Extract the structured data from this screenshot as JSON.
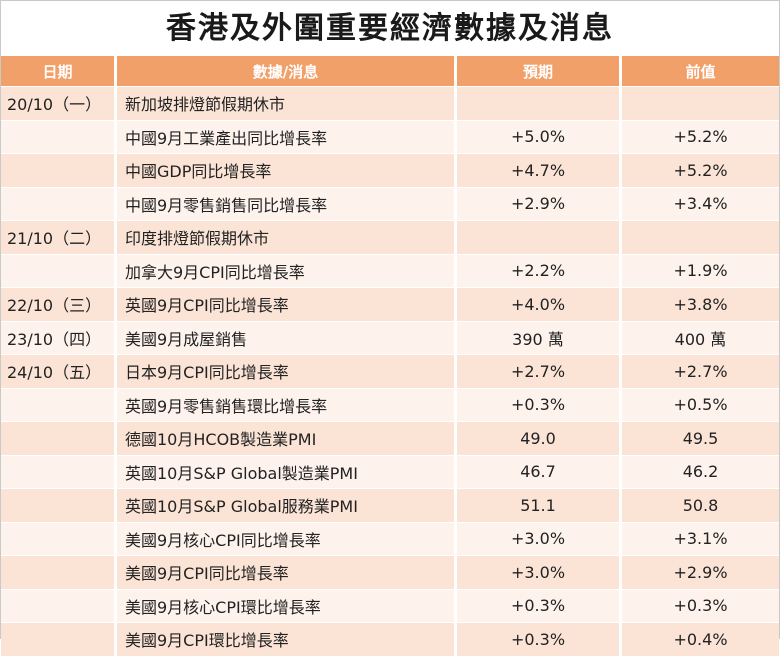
{
  "title": "香港及外圍重要經濟數據及消息",
  "headers": {
    "date": "日期",
    "item": "數據/消息",
    "forecast": "預期",
    "previous": "前值"
  },
  "rows": [
    {
      "date": "20/10（一）",
      "item": "新加坡排燈節假期休市",
      "forecast": "",
      "previous": ""
    },
    {
      "date": "",
      "item": "中國9月工業產出同比增長率",
      "forecast": "+5.0%",
      "previous": "+5.2%"
    },
    {
      "date": "",
      "item": "中國GDP同比增長率",
      "forecast": "+4.7%",
      "previous": "+5.2%"
    },
    {
      "date": "",
      "item": "中國9月零售銷售同比增長率",
      "forecast": "+2.9%",
      "previous": "+3.4%"
    },
    {
      "date": "21/10（二）",
      "item": "印度排燈節假期休市",
      "forecast": "",
      "previous": ""
    },
    {
      "date": "",
      "item": "加拿大9月CPI同比增長率",
      "forecast": "+2.2%",
      "previous": "+1.9%"
    },
    {
      "date": "22/10（三）",
      "item": "英國9月CPI同比增長率",
      "forecast": "+4.0%",
      "previous": "+3.8%"
    },
    {
      "date": "23/10（四）",
      "item": "美國9月成屋銷售",
      "forecast": "390 萬",
      "previous": "400 萬"
    },
    {
      "date": "24/10（五）",
      "item": "日本9月CPI同比增長率",
      "forecast": "+2.7%",
      "previous": "+2.7%"
    },
    {
      "date": "",
      "item": "英國9月零售銷售環比增長率",
      "forecast": "+0.3%",
      "previous": "+0.5%"
    },
    {
      "date": "",
      "item": "德國10月HCOB製造業PMI",
      "forecast": "49.0",
      "previous": "49.5"
    },
    {
      "date": "",
      "item": "英國10月S&P Global製造業PMI",
      "forecast": "46.7",
      "previous": "46.2"
    },
    {
      "date": "",
      "item": "英國10月S&P Global服務業PMI",
      "forecast": "51.1",
      "previous": "50.8"
    },
    {
      "date": "",
      "item": "美國9月核心CPI同比增長率",
      "forecast": "+3.0%",
      "previous": "+3.1%"
    },
    {
      "date": "",
      "item": "美國9月CPI同比增長率",
      "forecast": "+3.0%",
      "previous": "+2.9%"
    },
    {
      "date": "",
      "item": "美國9月核心CPI環比增長率",
      "forecast": "+0.3%",
      "previous": "+0.3%"
    },
    {
      "date": "",
      "item": "美國9月CPI環比增長率",
      "forecast": "+0.3%",
      "previous": "+0.4%"
    }
  ],
  "colors": {
    "header_bg": "#f2a06a",
    "row_odd": "#fbe4d6",
    "row_even": "#fdf2ec"
  }
}
